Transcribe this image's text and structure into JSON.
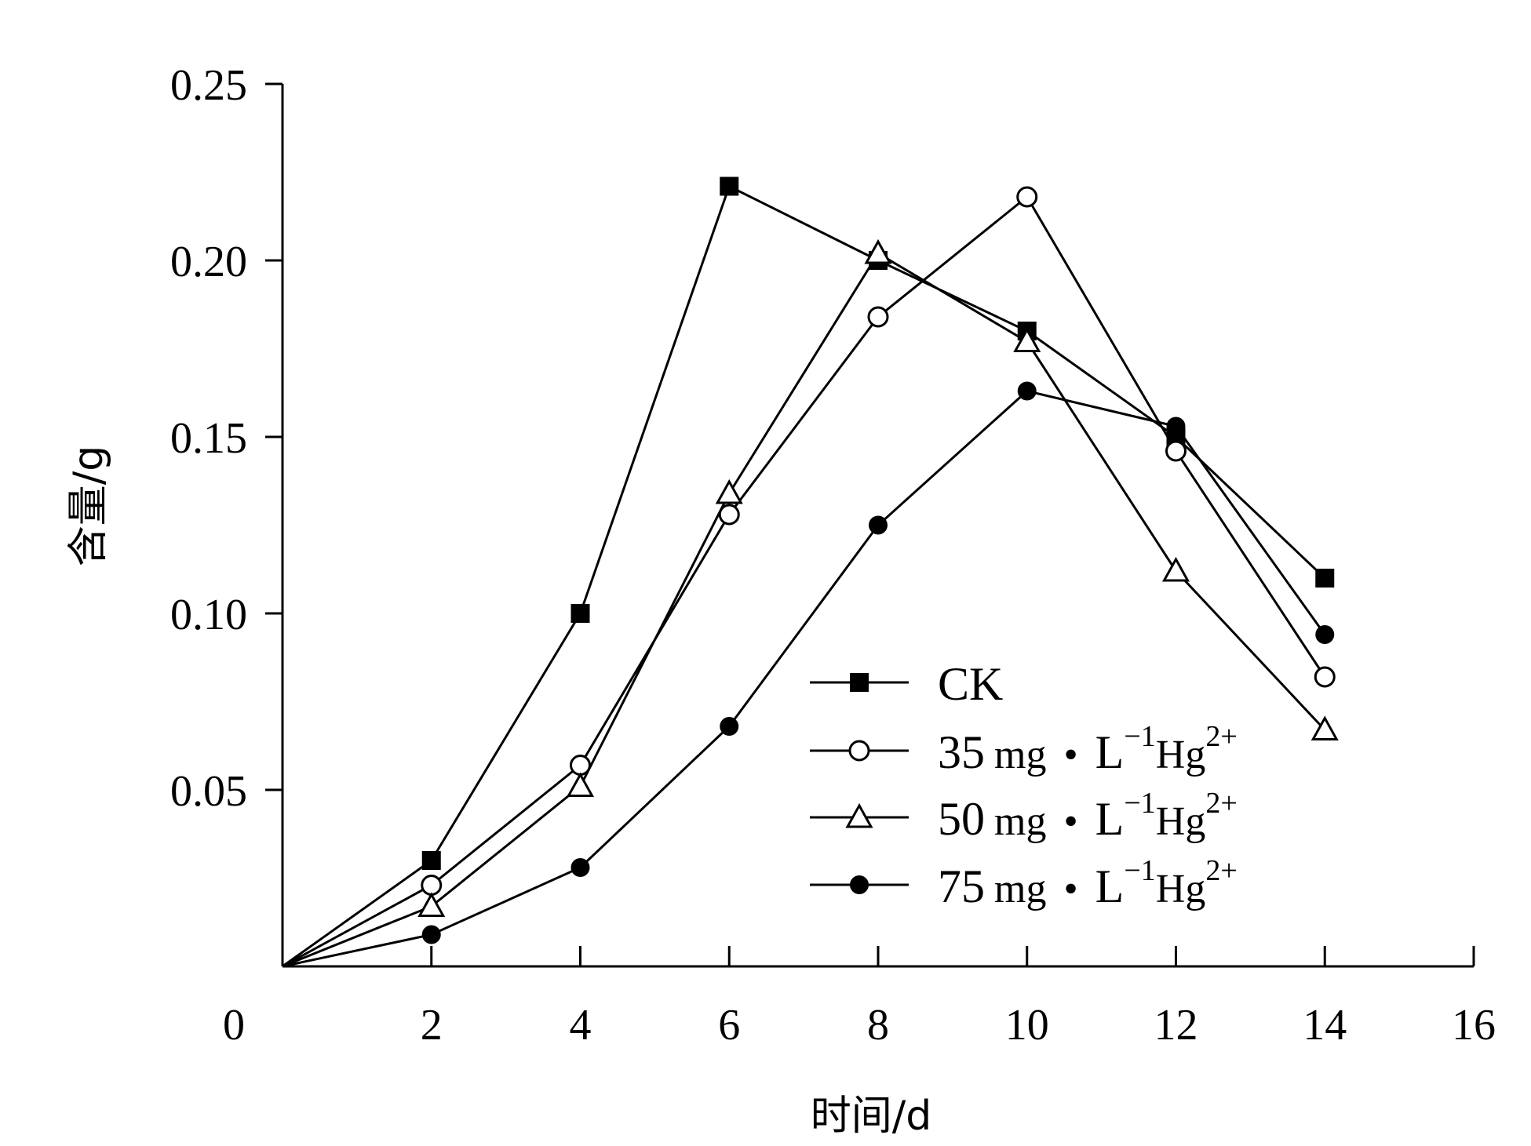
{
  "chart_data": {
    "type": "line",
    "xlabel": "时间/d",
    "ylabel": "含量/g",
    "xlim": [
      0,
      16
    ],
    "ylim": [
      0,
      0.25
    ],
    "x_ticks": [
      "0",
      "2",
      "4",
      "6",
      "8",
      "10",
      "12",
      "14",
      "16"
    ],
    "y_ticks": [
      "0.05",
      "0.10",
      "0.15",
      "0.20",
      "0.25"
    ],
    "grid": false,
    "legend_position": "lower-center",
    "series": [
      {
        "name": "CK",
        "marker": "filled-square",
        "x": [
          0,
          2,
          4,
          6,
          8,
          10,
          12,
          14
        ],
        "y": [
          0,
          0.03,
          0.1,
          0.221,
          0.2,
          0.18,
          0.15,
          0.11
        ]
      },
      {
        "name": "35 mg • L⁻¹Hg²⁺",
        "name_parts": {
          "conc": "35",
          "unit": "mg",
          "dot": "•",
          "L": "L",
          "exp1": "−1",
          "ion": "Hg",
          "exp2": "2+"
        },
        "marker": "open-circle",
        "x": [
          0,
          2,
          4,
          6,
          8,
          10,
          12,
          14
        ],
        "y": [
          0,
          0.023,
          0.057,
          0.128,
          0.184,
          0.218,
          0.146,
          0.082
        ]
      },
      {
        "name": "50 mg • L⁻¹Hg²⁺",
        "name_parts": {
          "conc": "50",
          "unit": "mg",
          "dot": "•",
          "L": "L",
          "exp1": "−1",
          "ion": "Hg",
          "exp2": "2+"
        },
        "marker": "open-triangle",
        "x": [
          0,
          2,
          4,
          6,
          8,
          10,
          12,
          14
        ],
        "y": [
          0,
          0.017,
          0.051,
          0.134,
          0.202,
          0.177,
          0.112,
          0.067
        ]
      },
      {
        "name": "75 mg • L⁻¹Hg²⁺",
        "name_parts": {
          "conc": "75",
          "unit": "mg",
          "dot": "•",
          "L": "L",
          "exp1": "−1",
          "ion": "Hg",
          "exp2": "2+"
        },
        "marker": "filled-circle",
        "x": [
          0,
          2,
          4,
          6,
          8,
          10,
          12,
          14
        ],
        "y": [
          0,
          0.009,
          0.028,
          0.068,
          0.125,
          0.163,
          0.153,
          0.094
        ]
      }
    ]
  }
}
